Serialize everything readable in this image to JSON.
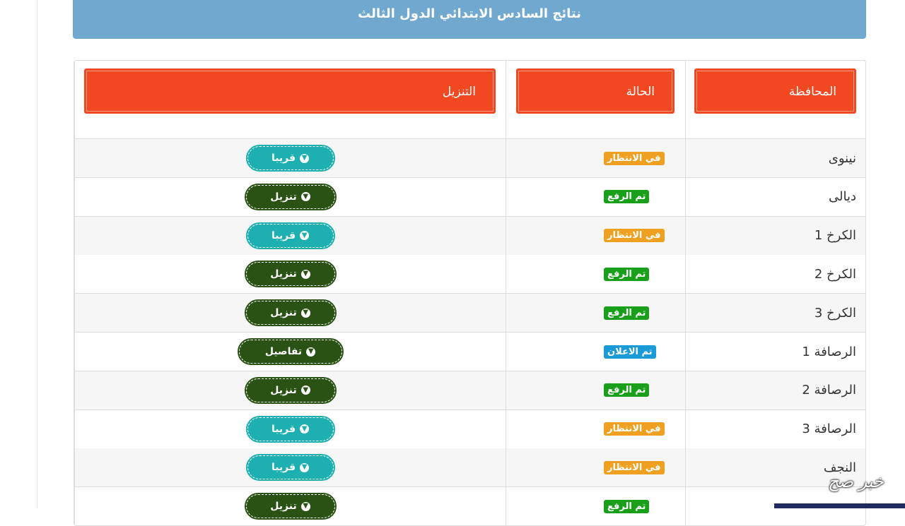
{
  "header": {
    "title": "نتائج السادس الابتدائي الدول الثالث"
  },
  "table": {
    "columns": [
      "المحافظة",
      "الحالة",
      "التنزيل"
    ],
    "rows": [
      {
        "province": "نينوى",
        "status": "في الانتظار",
        "action": "قريبا"
      },
      {
        "province": "ديالى",
        "status": "تم الرفع",
        "action": "تنزيل"
      },
      {
        "province": "الكرخ 1",
        "status": "في الانتظار",
        "action": "قريبا"
      },
      {
        "province": "الكرخ 2",
        "status": "تم الرفع",
        "action": "تنزيل"
      },
      {
        "province": "الكرخ 3",
        "status": "تم الرفع",
        "action": "تنزيل"
      },
      {
        "province": "الرصافة 1",
        "status": "تم الاعلان",
        "action": "تفاصيل"
      },
      {
        "province": "الرصافة 2",
        "status": "تم الرفع",
        "action": "تنزيل"
      },
      {
        "province": "الرصافة 3",
        "status": "في الانتظار",
        "action": "قريبا"
      },
      {
        "province": "النجف",
        "status": "في الانتظار",
        "action": "قريبا"
      },
      {
        "status": "تم الرفع",
        "action": "تنزيل"
      }
    ]
  },
  "watermark": "خبر صح"
}
